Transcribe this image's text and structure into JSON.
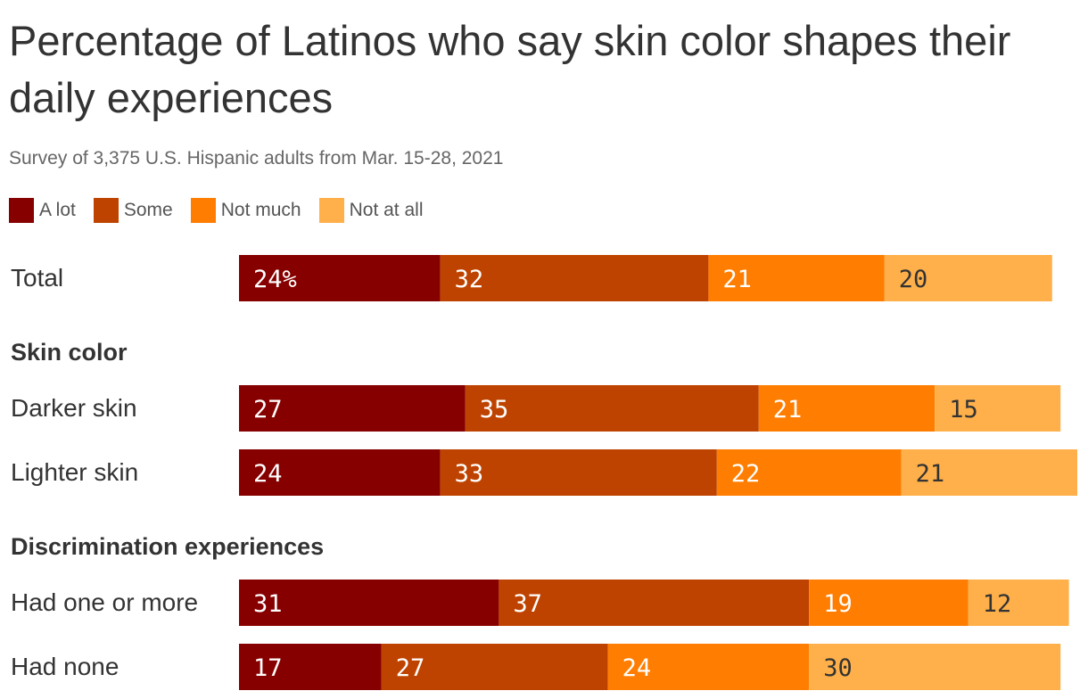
{
  "header": {
    "title": "Percentage of Latinos who say skin color shapes their daily experiences",
    "subtitle": "Survey of 3,375 U.S. Hispanic adults from Mar. 15-28, 2021"
  },
  "legend": [
    {
      "label": "A lot",
      "color": "#870000"
    },
    {
      "label": "Some",
      "color": "#bf4300"
    },
    {
      "label": "Not much",
      "color": "#ff7d00"
    },
    {
      "label": "Not at all",
      "color": "#ffb04a"
    }
  ],
  "chart_data": {
    "type": "bar",
    "orientation": "horizontal",
    "stacked": true,
    "title": "Percentage of Latinos who say skin color shapes their daily experiences",
    "subtitle": "Survey of 3,375 U.S. Hispanic adults from Mar. 15-28, 2021",
    "xlim": [
      0,
      100
    ],
    "grid": false,
    "legend_position": "top-left",
    "series_names": [
      "A lot",
      "Some",
      "Not much",
      "Not at all"
    ],
    "series_colors": [
      "#870000",
      "#bf4300",
      "#ff7d00",
      "#ffb04a"
    ],
    "groups": [
      {
        "label": "",
        "rows": [
          {
            "label": "Total",
            "values": [
              24,
              32,
              21,
              20
            ],
            "labels": [
              "24%",
              "32",
              "21",
              "20"
            ]
          }
        ]
      },
      {
        "label": "Skin color",
        "rows": [
          {
            "label": "Darker skin",
            "values": [
              27,
              35,
              21,
              15
            ],
            "labels": [
              "27",
              "35",
              "21",
              "15"
            ]
          },
          {
            "label": "Lighter skin",
            "values": [
              24,
              33,
              22,
              21
            ],
            "labels": [
              "24",
              "33",
              "22",
              "21"
            ]
          }
        ]
      },
      {
        "label": "Discrimination experiences",
        "rows": [
          {
            "label": "Had one or more",
            "values": [
              31,
              37,
              19,
              12
            ],
            "labels": [
              "31",
              "37",
              "19",
              "12"
            ]
          },
          {
            "label": "Had none",
            "values": [
              17,
              27,
              24,
              30
            ],
            "labels": [
              "17",
              "27",
              "24",
              "30"
            ]
          }
        ]
      }
    ]
  }
}
